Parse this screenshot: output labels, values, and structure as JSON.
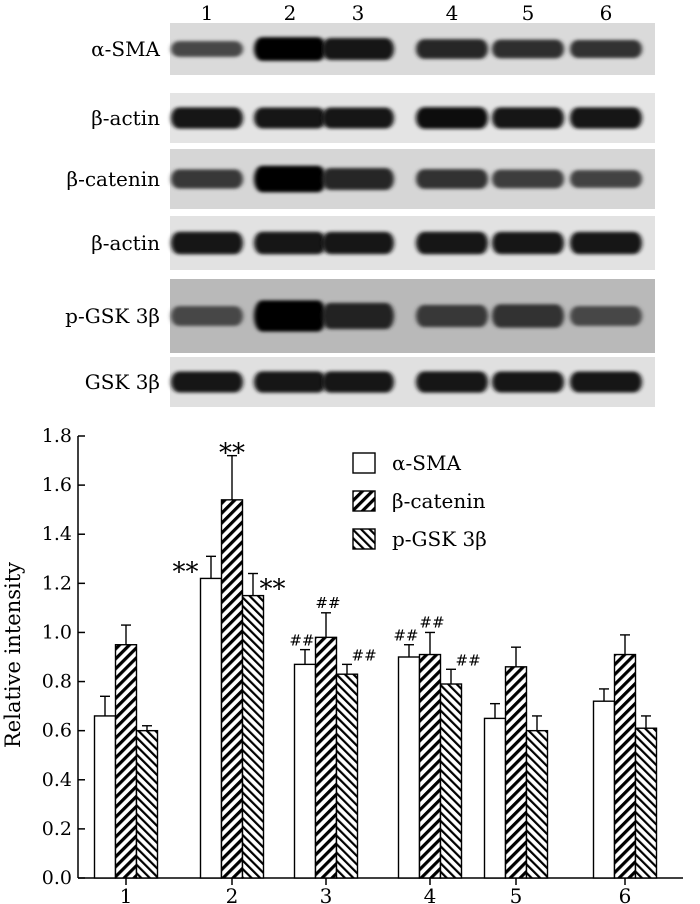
{
  "blot": {
    "lane_labels": [
      "1",
      "2",
      "3",
      "4",
      "5",
      "6"
    ],
    "rows": [
      {
        "label": "α-SMA",
        "intensity": [
          0.55,
          1.0,
          0.9,
          0.78,
          0.72,
          0.68
        ]
      },
      {
        "label": "β-actin",
        "intensity": [
          0.9,
          0.88,
          0.88,
          0.92,
          0.9,
          0.9
        ]
      },
      {
        "label": "β-catenin",
        "intensity": [
          0.65,
          1.0,
          0.78,
          0.68,
          0.62,
          0.58
        ]
      },
      {
        "label": "β-actin",
        "intensity": [
          0.9,
          0.9,
          0.88,
          0.9,
          0.88,
          0.88
        ]
      },
      {
        "label": "p-GSK 3β",
        "intensity": [
          0.55,
          1.0,
          0.8,
          0.65,
          0.7,
          0.55
        ]
      },
      {
        "label": "GSK 3β",
        "intensity": [
          0.88,
          0.9,
          0.9,
          0.9,
          0.88,
          0.88
        ]
      }
    ]
  },
  "chart_data": {
    "type": "bar",
    "categories": [
      "1",
      "2",
      "3",
      "4",
      "5",
      "6"
    ],
    "ylabel": "Relative intensity",
    "ylim": [
      0,
      1.8
    ],
    "yticks": [
      "0.0",
      "0.2",
      "0.4",
      "0.6",
      "0.8",
      "1.0",
      "1.2",
      "1.4",
      "1.6",
      "1.8"
    ],
    "legend_position": "top-right",
    "series": [
      {
        "name": "α-SMA",
        "pattern": "open",
        "values": [
          0.66,
          1.22,
          0.87,
          0.9,
          0.65,
          0.72
        ],
        "errors": [
          0.08,
          0.09,
          0.06,
          0.05,
          0.06,
          0.05
        ],
        "annotations": [
          "",
          "**",
          "##",
          "##",
          "",
          ""
        ]
      },
      {
        "name": "β-catenin",
        "pattern": "diagonal-forward",
        "values": [
          0.95,
          1.54,
          0.98,
          0.91,
          0.86,
          0.91
        ],
        "errors": [
          0.08,
          0.18,
          0.1,
          0.09,
          0.08,
          0.08
        ],
        "annotations": [
          "",
          "**",
          "##",
          "##",
          "",
          ""
        ]
      },
      {
        "name": "p-GSK 3β",
        "pattern": "diagonal-back",
        "values": [
          0.6,
          1.15,
          0.83,
          0.79,
          0.6,
          0.61
        ],
        "errors": [
          0.02,
          0.09,
          0.04,
          0.06,
          0.06,
          0.05
        ],
        "annotations": [
          "",
          "**",
          "##",
          "##",
          "",
          ""
        ]
      }
    ]
  }
}
